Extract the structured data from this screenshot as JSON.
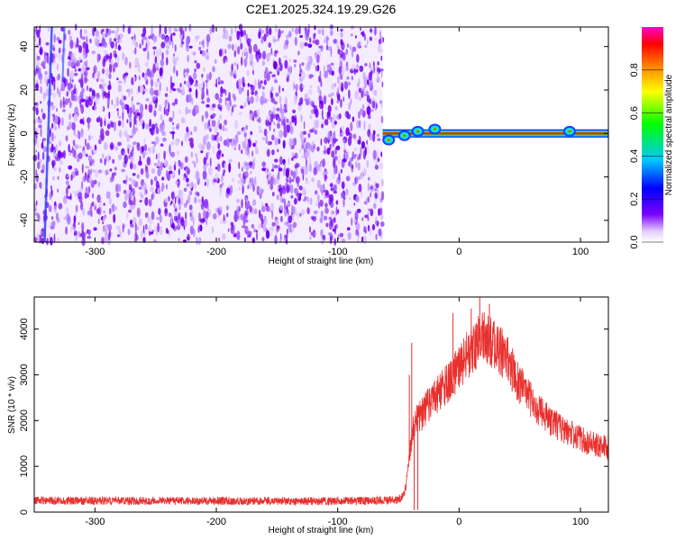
{
  "title": "C2E1.2025.324.19.29.G26",
  "chart_data": [
    {
      "type": "heatmap",
      "xlabel": "Height of straight line (km)",
      "ylabel": "Frequency (Hz)",
      "xlim": [
        -350,
        123
      ],
      "ylim": [
        -50,
        49
      ],
      "xticks": [
        -300,
        -200,
        -100,
        0,
        100
      ],
      "yticks": [
        -40,
        -20,
        0,
        20,
        40
      ],
      "noise_region_x": [
        -350,
        -63
      ],
      "signal_start_x": -63,
      "carrier_frequency": 0,
      "blob_events": [
        {
          "x": -58,
          "y": -3
        },
        {
          "x": -45,
          "y": -1
        },
        {
          "x": -34,
          "y": 1
        },
        {
          "x": -20,
          "y": 2
        },
        {
          "x": 91,
          "y": 1
        }
      ],
      "colorbar": {
        "label": "Normalized spectral amplitude",
        "range": [
          0,
          1
        ],
        "ticks": [
          "0.0",
          "0.2",
          "0.4",
          "0.6",
          "0.8"
        ],
        "colormap": [
          "#ffffff",
          "#e5ccff",
          "#7a00ff",
          "#0000ff",
          "#00c8ff",
          "#00ff00",
          "#ffff00",
          "#ff8000",
          "#ff0000",
          "#ff00cc"
        ]
      }
    },
    {
      "type": "line",
      "xlabel": "Height of straight line (km)",
      "ylabel": "SNR (10 * v/v)",
      "xlim": [
        -350,
        123
      ],
      "ylim": [
        0,
        4700
      ],
      "xticks": [
        -300,
        -200,
        -100,
        0,
        100
      ],
      "yticks": [
        0,
        1000,
        2000,
        3000,
        4000
      ],
      "color": "#e8302e",
      "envelope": {
        "x": [
          -350,
          -100,
          -50,
          -45,
          -42,
          -40,
          -38,
          -35,
          -30,
          -25,
          -20,
          -15,
          -10,
          -5,
          0,
          5,
          10,
          15,
          20,
          25,
          30,
          35,
          40,
          45,
          50,
          55,
          60,
          70,
          80,
          90,
          100,
          110,
          123
        ],
        "y": [
          250,
          240,
          260,
          400,
          900,
          1400,
          1800,
          2000,
          2150,
          2350,
          2500,
          2650,
          2800,
          2950,
          3150,
          3350,
          3550,
          3700,
          3800,
          3750,
          3650,
          3500,
          3300,
          3050,
          2800,
          2600,
          2400,
          2100,
          1900,
          1750,
          1600,
          1500,
          1400
        ]
      },
      "noise_amplitude": {
        "pre_signal": 90,
        "in_signal_fraction": 0.14
      },
      "spikes": [
        {
          "x": -41,
          "y": 3000
        },
        {
          "x": -39,
          "y": 3700
        },
        {
          "x": -37,
          "y": 40
        },
        {
          "x": -34,
          "y": 50
        },
        {
          "x": -5,
          "y": 4350
        },
        {
          "x": 10,
          "y": 4450
        },
        {
          "x": 17,
          "y": 4700
        },
        {
          "x": 25,
          "y": 4550
        },
        {
          "x": 92,
          "y": 1700
        }
      ]
    }
  ]
}
